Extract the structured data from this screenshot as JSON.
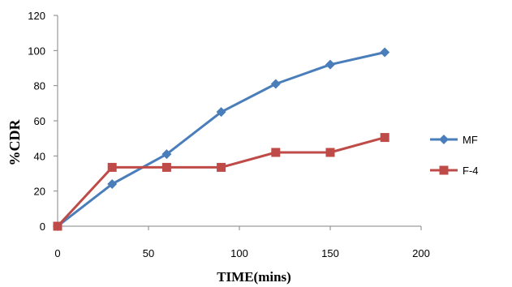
{
  "chart_data": {
    "type": "line",
    "xlabel": "TIME(mins)",
    "ylabel": "%CDR",
    "xlim": [
      0,
      200
    ],
    "ylim": [
      0,
      120
    ],
    "xticks": [
      "0",
      "50",
      "100",
      "150",
      "200"
    ],
    "yticks": [
      "0",
      "20",
      "40",
      "60",
      "80",
      "100",
      "120"
    ],
    "grid": false,
    "legend_position": "right",
    "series": [
      {
        "name": "MF",
        "marker": "diamond",
        "color": "#4a7ebb",
        "x": [
          0,
          30,
          60,
          90,
          120,
          150,
          180
        ],
        "y": [
          0,
          24,
          41,
          65,
          81,
          92,
          99
        ]
      },
      {
        "name": "F-4",
        "marker": "square",
        "color": "#be4b48",
        "x": [
          0,
          30,
          60,
          90,
          120,
          150,
          180
        ],
        "y": [
          0,
          33.5,
          33.5,
          33.5,
          42,
          42,
          50.5
        ]
      }
    ]
  }
}
